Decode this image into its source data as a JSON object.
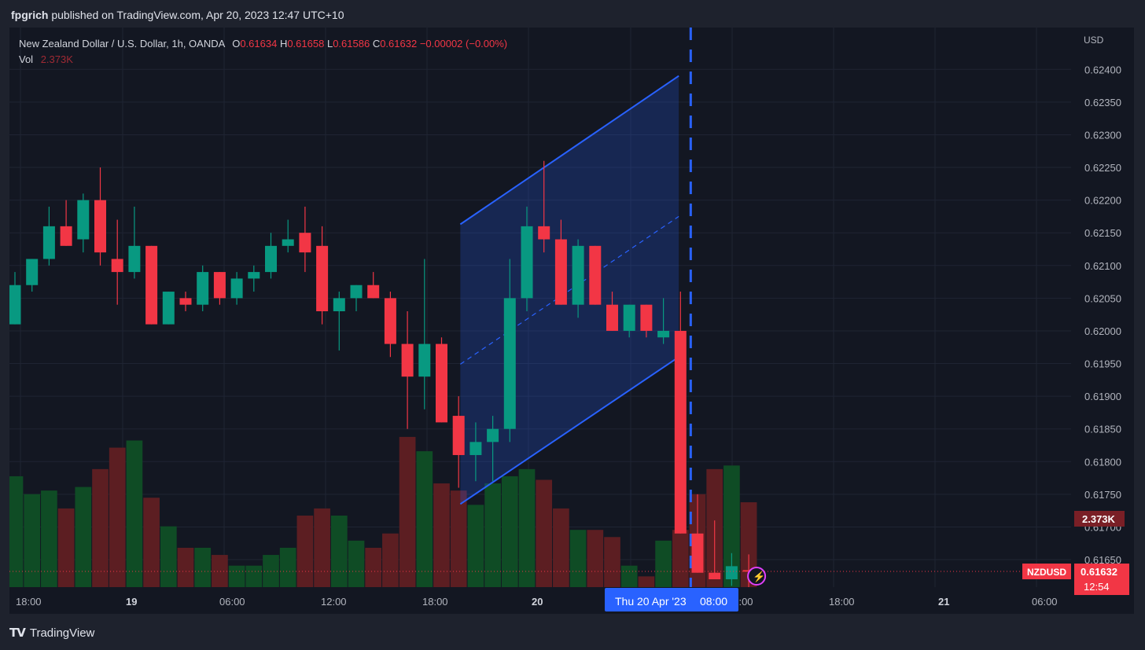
{
  "header": {
    "publisher": "fpgrich",
    "published_text": "published on TradingView.com, Apr 20, 2023 12:47 UTC+10"
  },
  "legend": {
    "title": "New Zealand Dollar / U.S. Dollar, 1h, OANDA",
    "o_label": "O",
    "o_value": "0.61634",
    "h_label": "H",
    "h_value": "0.61658",
    "l_label": "L",
    "l_value": "0.61586",
    "c_label": "C",
    "c_value": "0.61632",
    "change": "−0.00002 (−0.00%)",
    "vol_label": "Vol",
    "vol_value": "2.373K"
  },
  "logo_text": "TradingView",
  "colors": {
    "up": "#089981",
    "down": "#f23645",
    "vol_up": "#0f4c25",
    "vol_down": "#5c1e22",
    "channel": "#2962ff",
    "grid": "#1f2433",
    "text": "#b2b5be"
  },
  "chart_data": {
    "type": "candlestick",
    "symbol": "NZDUSD",
    "currency": "USD",
    "x_ticks": [
      "18:00",
      "19",
      "06:00",
      "12:00",
      "18:00",
      "20",
      "06:00",
      "12:00",
      "18:00",
      "21",
      "06:00"
    ],
    "y_ticks": [
      "0.62400",
      "0.62350",
      "0.62300",
      "0.62250",
      "0.62200",
      "0.62150",
      "0.62100",
      "0.62050",
      "0.62000",
      "0.61950",
      "0.61900",
      "0.61850",
      "0.61800",
      "0.61750",
      "0.61700",
      "0.61650"
    ],
    "ylim": [
      0.6162,
      0.6244
    ],
    "volume_max": 4.0,
    "candles": [
      {
        "o": 0.6201,
        "h": 0.6209,
        "l": 0.6201,
        "c": 0.6207,
        "v": 3.1
      },
      {
        "o": 0.6207,
        "h": 0.6211,
        "l": 0.6206,
        "c": 0.6211,
        "v": 2.6
      },
      {
        "o": 0.6211,
        "h": 0.6219,
        "l": 0.621,
        "c": 0.6216,
        "v": 2.7
      },
      {
        "o": 0.6216,
        "h": 0.622,
        "l": 0.6213,
        "c": 0.6213,
        "v": 2.2
      },
      {
        "o": 0.6214,
        "h": 0.6221,
        "l": 0.6212,
        "c": 0.622,
        "v": 2.8
      },
      {
        "o": 0.622,
        "h": 0.6225,
        "l": 0.621,
        "c": 0.6212,
        "v": 3.3
      },
      {
        "o": 0.6211,
        "h": 0.6217,
        "l": 0.6204,
        "c": 0.6209,
        "v": 3.9
      },
      {
        "o": 0.6209,
        "h": 0.6219,
        "l": 0.6208,
        "c": 0.6213,
        "v": 4.1
      },
      {
        "o": 0.6213,
        "h": 0.6213,
        "l": 0.6201,
        "c": 0.6201,
        "v": 2.5
      },
      {
        "o": 0.6201,
        "h": 0.6206,
        "l": 0.6201,
        "c": 0.6206,
        "v": 1.7
      },
      {
        "o": 0.6205,
        "h": 0.6206,
        "l": 0.6203,
        "c": 0.6204,
        "v": 1.1
      },
      {
        "o": 0.6204,
        "h": 0.621,
        "l": 0.6203,
        "c": 0.6209,
        "v": 1.1
      },
      {
        "o": 0.6209,
        "h": 0.6209,
        "l": 0.6204,
        "c": 0.6205,
        "v": 0.9
      },
      {
        "o": 0.6205,
        "h": 0.6209,
        "l": 0.6204,
        "c": 0.6208,
        "v": 0.6
      },
      {
        "o": 0.6208,
        "h": 0.621,
        "l": 0.6206,
        "c": 0.6209,
        "v": 0.6
      },
      {
        "o": 0.6209,
        "h": 0.6215,
        "l": 0.6208,
        "c": 0.6213,
        "v": 0.9
      },
      {
        "o": 0.6213,
        "h": 0.6217,
        "l": 0.6212,
        "c": 0.6214,
        "v": 1.1
      },
      {
        "o": 0.6215,
        "h": 0.6219,
        "l": 0.6209,
        "c": 0.6212,
        "v": 2.0
      },
      {
        "o": 0.6213,
        "h": 0.6216,
        "l": 0.6201,
        "c": 0.6203,
        "v": 2.2
      },
      {
        "o": 0.6203,
        "h": 0.6206,
        "l": 0.6197,
        "c": 0.6205,
        "v": 2.0
      },
      {
        "o": 0.6205,
        "h": 0.6207,
        "l": 0.6203,
        "c": 0.6207,
        "v": 1.3
      },
      {
        "o": 0.6207,
        "h": 0.6209,
        "l": 0.6205,
        "c": 0.6205,
        "v": 1.1
      },
      {
        "o": 0.6205,
        "h": 0.6206,
        "l": 0.6196,
        "c": 0.6198,
        "v": 1.5
      },
      {
        "o": 0.6198,
        "h": 0.6203,
        "l": 0.6185,
        "c": 0.6193,
        "v": 4.2
      },
      {
        "o": 0.6193,
        "h": 0.6211,
        "l": 0.6188,
        "c": 0.6198,
        "v": 3.8
      },
      {
        "o": 0.6198,
        "h": 0.6199,
        "l": 0.6186,
        "c": 0.6186,
        "v": 2.9
      },
      {
        "o": 0.6187,
        "h": 0.619,
        "l": 0.6176,
        "c": 0.6181,
        "v": 2.7
      },
      {
        "o": 0.6181,
        "h": 0.6186,
        "l": 0.6177,
        "c": 0.6183,
        "v": 2.3
      },
      {
        "o": 0.6183,
        "h": 0.6187,
        "l": 0.6177,
        "c": 0.6185,
        "v": 2.9
      },
      {
        "o": 0.6185,
        "h": 0.6211,
        "l": 0.6183,
        "c": 0.6205,
        "v": 3.1
      },
      {
        "o": 0.6205,
        "h": 0.6219,
        "l": 0.6203,
        "c": 0.6216,
        "v": 3.3
      },
      {
        "o": 0.6216,
        "h": 0.6226,
        "l": 0.6212,
        "c": 0.6214,
        "v": 3.0
      },
      {
        "o": 0.6214,
        "h": 0.6217,
        "l": 0.6204,
        "c": 0.6204,
        "v": 2.2
      },
      {
        "o": 0.6204,
        "h": 0.6214,
        "l": 0.6202,
        "c": 0.6213,
        "v": 1.6
      },
      {
        "o": 0.6213,
        "h": 0.6213,
        "l": 0.6204,
        "c": 0.6204,
        "v": 1.6
      },
      {
        "o": 0.6204,
        "h": 0.6206,
        "l": 0.62,
        "c": 0.62,
        "v": 1.4
      },
      {
        "o": 0.62,
        "h": 0.6204,
        "l": 0.6199,
        "c": 0.6204,
        "v": 0.6
      },
      {
        "o": 0.6204,
        "h": 0.6204,
        "l": 0.6199,
        "c": 0.62,
        "v": 0.3
      },
      {
        "o": 0.6199,
        "h": 0.6205,
        "l": 0.6198,
        "c": 0.62,
        "v": 1.3
      },
      {
        "o": 0.62,
        "h": 0.6206,
        "l": 0.6169,
        "c": 0.6169,
        "v": 1.6
      },
      {
        "o": 0.6169,
        "h": 0.6175,
        "l": 0.6163,
        "c": 0.6163,
        "v": 2.6
      },
      {
        "o": 0.6163,
        "h": 0.6171,
        "l": 0.6162,
        "c": 0.6162,
        "v": 3.3
      },
      {
        "o": 0.6162,
        "h": 0.6166,
        "l": 0.6161,
        "c": 0.6164,
        "v": 3.4
      },
      {
        "o": 0.61634,
        "h": 0.61658,
        "l": 0.61586,
        "c": 0.61632,
        "v": 2.373
      }
    ],
    "channel": [
      {
        "x_index": 26.1,
        "upper": 0.62163,
        "lower": 0.61735
      },
      {
        "x_index": 38.9,
        "upper": 0.6239,
        "lower": 0.6196
      }
    ],
    "vertical_marker_index": 39.6,
    "last_price": "0.61632",
    "last_price_label": "NZDUSD",
    "countdown": "12:54",
    "volume_label": "2.373K",
    "crosshair_label": "Thu 20 Apr '23",
    "crosshair_time": "08:00"
  }
}
